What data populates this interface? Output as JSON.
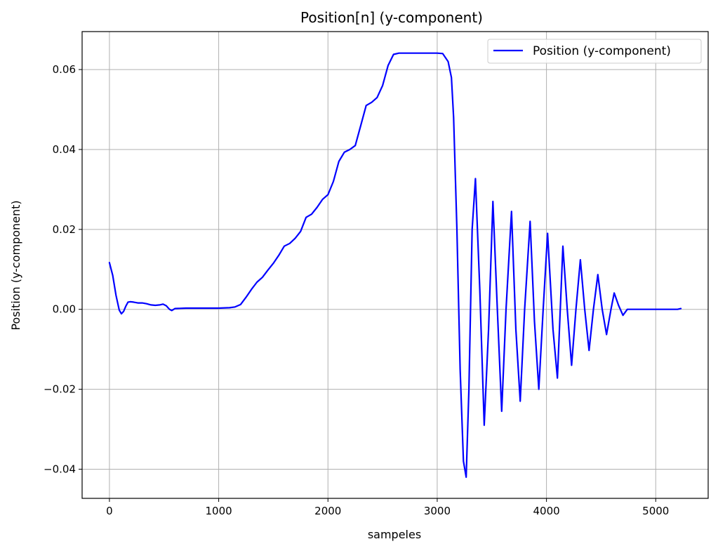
{
  "chart_data": {
    "type": "line",
    "title": "Position[n] (y-component)",
    "xlabel": "sampeles",
    "ylabel": "Position (y-component)",
    "xlim": [
      -250,
      5480
    ],
    "ylim": [
      -0.0473,
      0.0695
    ],
    "x_ticks": [
      0,
      1000,
      2000,
      3000,
      4000,
      5000
    ],
    "x_tick_labels": [
      "0",
      "1000",
      "2000",
      "3000",
      "4000",
      "5000"
    ],
    "y_ticks": [
      -0.04,
      -0.02,
      0.0,
      0.02,
      0.04,
      0.06
    ],
    "y_tick_labels": [
      "−0.04",
      "−0.02",
      "0.00",
      "0.02",
      "0.04",
      "0.06"
    ],
    "grid": true,
    "legend_position": "top-right",
    "series": [
      {
        "name": "Position (y-component)",
        "color": "#0000ff",
        "x": [
          0,
          30,
          60,
          90,
          110,
          130,
          150,
          170,
          190,
          220,
          260,
          300,
          340,
          380,
          420,
          460,
          490,
          520,
          550,
          570,
          600,
          700,
          800,
          900,
          1000,
          1100,
          1150,
          1200,
          1250,
          1300,
          1350,
          1400,
          1450,
          1500,
          1550,
          1600,
          1650,
          1700,
          1750,
          1800,
          1850,
          1900,
          1950,
          2000,
          2050,
          2100,
          2150,
          2200,
          2250,
          2300,
          2350,
          2400,
          2450,
          2500,
          2550,
          2600,
          2650,
          2700,
          2800,
          2900,
          3000,
          3050,
          3100,
          3130,
          3150,
          3180,
          3210,
          3240,
          3265,
          3290,
          3320,
          3350,
          3390,
          3430,
          3470,
          3510,
          3550,
          3590,
          3630,
          3680,
          3720,
          3760,
          3800,
          3850,
          3890,
          3930,
          3970,
          4010,
          4060,
          4100,
          4150,
          4190,
          4230,
          4270,
          4310,
          4350,
          4390,
          4430,
          4470,
          4510,
          4550,
          4590,
          4620,
          4660,
          4700,
          4740,
          4800,
          4900,
          5000,
          5100,
          5150,
          5200,
          5230
        ],
        "y": [
          0.0117,
          0.0085,
          0.0035,
          -0.0002,
          -0.0011,
          -0.0005,
          0.0008,
          0.0018,
          0.0019,
          0.0018,
          0.0016,
          0.0016,
          0.0014,
          0.0011,
          0.001,
          0.0011,
          0.0013,
          0.0009,
          0.0,
          -0.0003,
          0.0002,
          0.0003,
          0.0003,
          0.0003,
          0.0003,
          0.0004,
          0.0006,
          0.0012,
          0.003,
          0.005,
          0.0068,
          0.008,
          0.0098,
          0.0115,
          0.0135,
          0.0158,
          0.0165,
          0.0178,
          0.0195,
          0.023,
          0.0238,
          0.0255,
          0.0275,
          0.0287,
          0.032,
          0.037,
          0.0393,
          0.04,
          0.041,
          0.046,
          0.051,
          0.0518,
          0.053,
          0.056,
          0.061,
          0.0638,
          0.0641,
          0.0641,
          0.0641,
          0.0641,
          0.0641,
          0.064,
          0.062,
          0.058,
          0.048,
          0.02,
          -0.015,
          -0.038,
          -0.042,
          -0.02,
          0.02,
          0.0327,
          0.005,
          -0.029,
          -0.005,
          0.027,
          0.0,
          -0.0255,
          0.0,
          0.0245,
          -0.005,
          -0.023,
          0.0,
          0.022,
          -0.003,
          -0.02,
          0.0,
          0.019,
          -0.005,
          -0.0172,
          0.0158,
          0.0,
          -0.014,
          0.0,
          0.0124,
          0.0,
          -0.0103,
          0.0,
          0.0087,
          0.0,
          -0.0063,
          0.0,
          0.0041,
          0.001,
          -0.0015,
          0.0,
          0.0,
          0.0,
          0.0,
          0.0,
          0.0,
          0.0,
          0.0002
        ]
      }
    ]
  }
}
